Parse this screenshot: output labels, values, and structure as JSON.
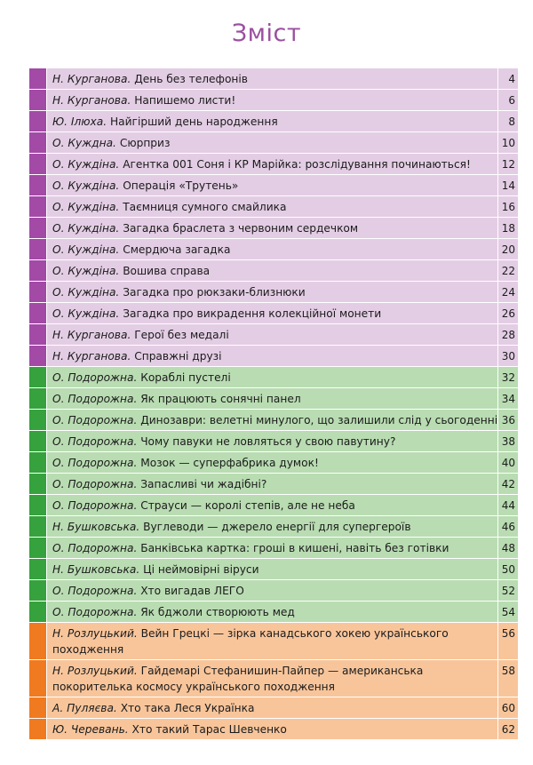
{
  "title": "Зміст",
  "colors": {
    "purple": "#a24aa6",
    "green": "#35a23d",
    "orange": "#f07a20"
  },
  "entries": [
    {
      "author": "Н. Курганова.",
      "title": "День без телефонів",
      "page": "4",
      "section": "purple"
    },
    {
      "author": "Н. Курганова.",
      "title": "Напишемо листи!",
      "page": "6",
      "section": "purple"
    },
    {
      "author": "Ю. Ілюха.",
      "title": "Найгірший день народження",
      "page": "8",
      "section": "purple"
    },
    {
      "author": "О. Куждна.",
      "title": "Сюрприз",
      "page": "10",
      "section": "purple"
    },
    {
      "author": "О. Куждіна.",
      "title": "Агентка 001 Соня і КР Марійка: розслідування починаються!",
      "page": "12",
      "section": "purple"
    },
    {
      "author": "О. Куждіна.",
      "title": "Операція «Трутень»",
      "page": "14",
      "section": "purple"
    },
    {
      "author": "О. Куждіна.",
      "title": "Таємниця сумного смайлика",
      "page": "16",
      "section": "purple"
    },
    {
      "author": "О. Куждіна.",
      "title": "Загадка браслета з червоним сердечком",
      "page": "18",
      "section": "purple"
    },
    {
      "author": "О. Куждіна.",
      "title": "Смердюча загадка",
      "page": "20",
      "section": "purple"
    },
    {
      "author": "О. Куждіна.",
      "title": "Вошива справа",
      "page": "22",
      "section": "purple"
    },
    {
      "author": "О. Куждіна.",
      "title": "Загадка про рюкзаки-близнюки",
      "page": "24",
      "section": "purple"
    },
    {
      "author": "О. Куждіна.",
      "title": "Загадка про викрадення колекційної монети",
      "page": "26",
      "section": "purple"
    },
    {
      "author": "Н. Курганова.",
      "title": "Герої без медалі",
      "page": "28",
      "section": "purple"
    },
    {
      "author": "Н. Курганова.",
      "title": "Справжні друзі",
      "page": "30",
      "section": "purple"
    },
    {
      "author": "О. Подорожна.",
      "title": "Кораблі пустелі",
      "page": "32",
      "section": "green"
    },
    {
      "author": "О. Подорожна.",
      "title": " Як працюють сонячні панел",
      "page": "34",
      "section": "green"
    },
    {
      "author": "О. Подорожна.",
      "title": "Динозаври: велетні минулого, що залишили слід у сьогоденні",
      "page": "36",
      "section": "green"
    },
    {
      "author": "О. Подорожна.",
      "title": "Чому павуки не ловляться у свою павутину?",
      "page": "38",
      "section": "green"
    },
    {
      "author": "О. Подорожна.",
      "title": "Мозок — суперфабрика думок!",
      "page": "40",
      "section": "green"
    },
    {
      "author": "О. Подорожна.",
      "title": "Запасливі чи жадібні?",
      "page": "42",
      "section": "green"
    },
    {
      "author": "О. Подорожна.",
      "title": "Страуси — королі степів, але не неба",
      "page": "44",
      "section": "green"
    },
    {
      "author": "Н. Бушковська.",
      "title": "Вуглеводи — джерело енергії для супергероїв",
      "page": "46",
      "section": "green"
    },
    {
      "author": "О. Подорожна.",
      "title": "Банківська картка: гроші в кишені, навіть без готівки",
      "page": "48",
      "section": "green"
    },
    {
      "author": "Н. Бушковська.",
      "title": "Ці неймовірні віруси",
      "page": "50",
      "section": "green"
    },
    {
      "author": "О. Подорожна.",
      "title": "Хто вигадав ЛЕГО",
      "page": "52",
      "section": "green"
    },
    {
      "author": "О. Подорожна.",
      "title": "Як бджоли створюють мед",
      "page": "54",
      "section": "green"
    },
    {
      "author": "Н. Розлуцький.",
      "title": "Вейн Грецкі — зірка канадського хокею українського походження",
      "page": "56",
      "section": "orange",
      "two": true
    },
    {
      "author": "Н. Розлуцький.",
      "title": "Гайдемарі Стефанишин-Пайпер — американська покорителька космосу українського походження",
      "page": "58",
      "section": "orange",
      "two": true
    },
    {
      "author": "А. Пуляєва.",
      "title": "Хто така Леся Українка",
      "page": "60",
      "section": "orange"
    },
    {
      "author": "Ю. Черевань.",
      "title": "Хто такий Тарас Шевченко",
      "page": "62",
      "section": "orange"
    }
  ]
}
